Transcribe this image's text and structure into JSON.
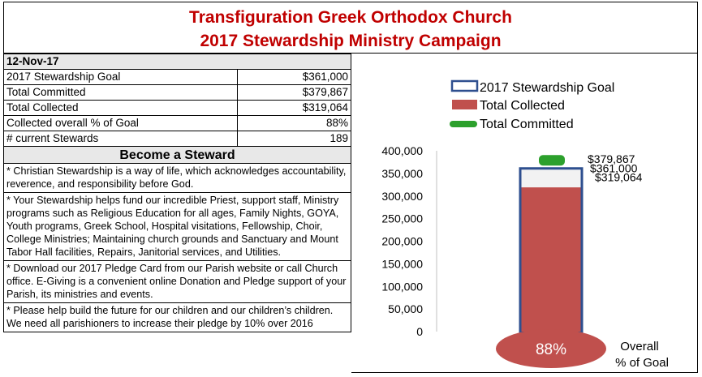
{
  "header": {
    "line1": "Transfiguration Greek Orthodox Church",
    "line2": "2017 Stewardship Ministry Campaign"
  },
  "stats": {
    "date": "12-Nov-17",
    "rows": [
      {
        "label": "2017 Stewardship Goal",
        "value": "$361,000"
      },
      {
        "label": "Total Committed",
        "value": "$379,867"
      },
      {
        "label": "Total Collected",
        "value": "$319,064"
      },
      {
        "label": "Collected overall % of Goal",
        "value": "88%"
      },
      {
        "label": "# current Stewards",
        "value": "189"
      }
    ]
  },
  "become_heading": "Become a Steward",
  "notes": [
    "* Christian Stewardship is a way of life, which acknowledges accountability, reverence, and responsibility before God.",
    "* Your Stewardship helps fund our incredible Priest, support staff, Ministry programs such as Religious Education for all ages, Family Nights, GOYA, Youth programs, Greek School, Hospital visitations, Fellowship, Choir, College Ministries; Maintaining church grounds and Sanctuary and Mount Tabor Hall facilities, Repairs, Janitorial services, and Utilities.",
    "* Download our 2017 Pledge Card from our Parish website or call Church office.  E-Giving is a convenient online Donation and Pledge support of your Parish, its ministries and events.",
    "* Please help build the future for our children and our children’s children. We need all parishioners to increase their pledge by 10% over 2016"
  ],
  "chart_data": {
    "type": "bar",
    "ylim": [
      0,
      400000
    ],
    "ytick_labels": [
      "0",
      "50,000",
      "100,000",
      "150,000",
      "200,000",
      "250,000",
      "300,000",
      "350,000",
      "400,000"
    ],
    "ytick_values": [
      0,
      50000,
      100000,
      150000,
      200000,
      250000,
      300000,
      350000,
      400000
    ],
    "series": [
      {
        "name": "2017 Stewardship Goal",
        "value": 361000,
        "label": "$361,000",
        "color": "#2e4f8f"
      },
      {
        "name": "Total Collected",
        "value": 319064,
        "label": "$319,064",
        "color": "#c0504d"
      },
      {
        "name": "Total Committed",
        "value": 379867,
        "label": "$379,867",
        "color": "#2ca02c"
      }
    ],
    "bulb_label": "88%",
    "bulb_caption_line1": "Overall",
    "bulb_caption_line2": "% of Goal",
    "legend_position": "top",
    "grid": false
  }
}
